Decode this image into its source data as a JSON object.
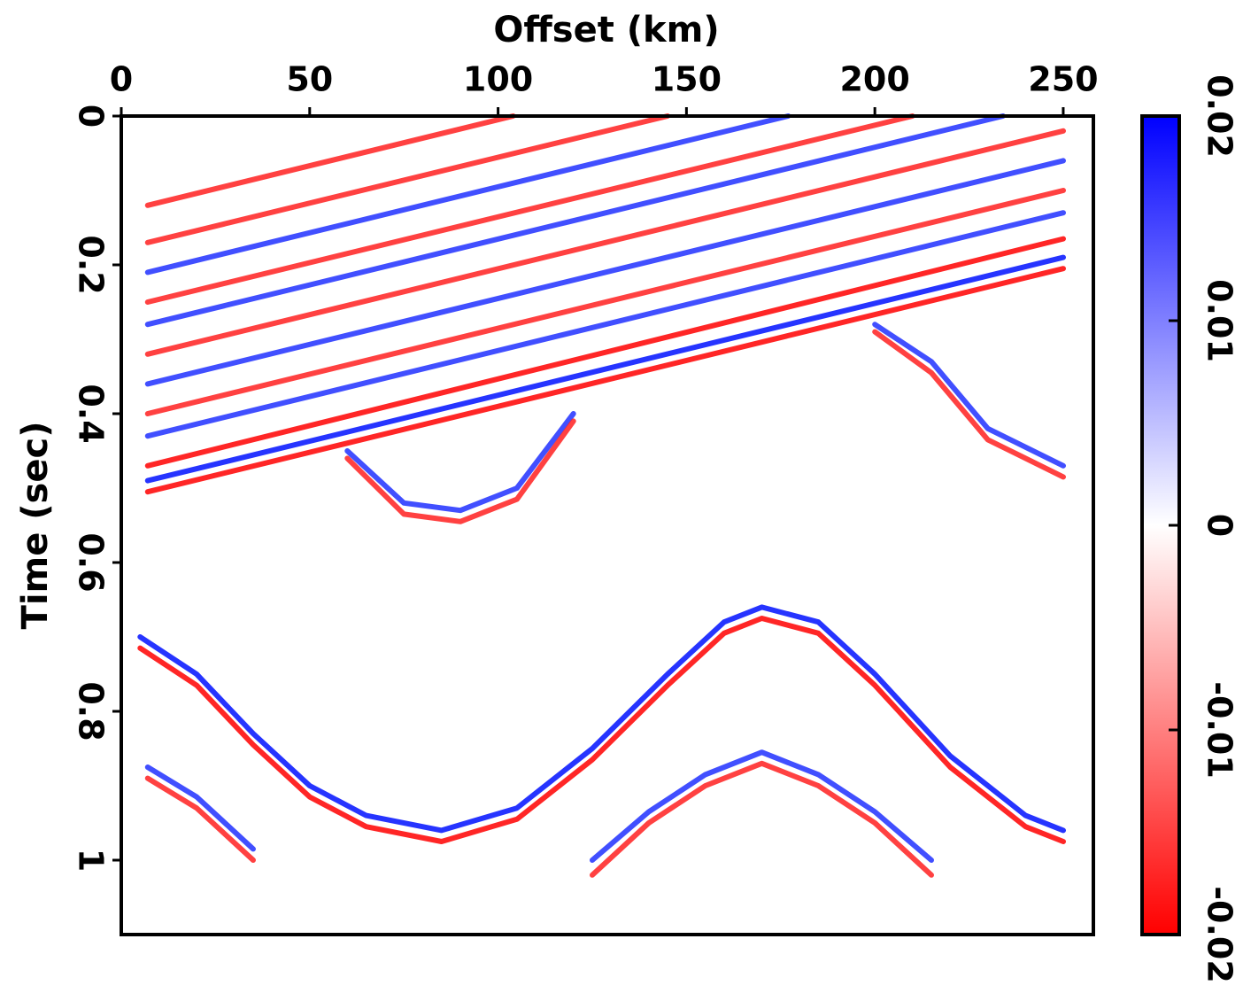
{
  "chart_data": {
    "type": "image",
    "xlabel": "Offset (km)",
    "ylabel": "Time (sec)",
    "xlim": [
      0,
      258
    ],
    "ylim": [
      0,
      1.1
    ],
    "xticks": [
      0,
      50,
      100,
      150,
      200,
      250
    ],
    "yticks": [
      0,
      0.2,
      0.4,
      0.6,
      0.8,
      1
    ],
    "y_inverted": true,
    "colormap": [
      "#0000ff",
      "#ffffff",
      "#ff0000"
    ],
    "clim": [
      0.02,
      -0.02
    ],
    "cticks": [
      0.02,
      0.01,
      0,
      -0.01,
      -0.02
    ],
    "series": [
      {
        "color": "#ff2020",
        "x": [
          7,
          104
        ],
        "values": [
          0.12,
          0
        ]
      },
      {
        "color": "#ff2020",
        "x": [
          7,
          145
        ],
        "values": [
          0.17,
          0
        ]
      },
      {
        "color": "#2030ff",
        "x": [
          7,
          177
        ],
        "values": [
          0.21,
          0
        ]
      },
      {
        "color": "#ff2020",
        "x": [
          7,
          210
        ],
        "values": [
          0.25,
          0
        ]
      },
      {
        "color": "#2030ff",
        "x": [
          7,
          234
        ],
        "values": [
          0.28,
          0
        ]
      },
      {
        "color": "#ff2020",
        "x": [
          7,
          250
        ],
        "values": [
          0.32,
          0.02
        ]
      },
      {
        "color": "#2030ff",
        "x": [
          7,
          250
        ],
        "values": [
          0.36,
          0.06
        ]
      },
      {
        "color": "#ff2020",
        "x": [
          7,
          250
        ],
        "values": [
          0.4,
          0.1
        ]
      },
      {
        "color": "#2030ff",
        "x": [
          7,
          250
        ],
        "values": [
          0.43,
          0.13
        ]
      },
      {
        "color": "#ff0000",
        "x": [
          7,
          250
        ],
        "values": [
          0.47,
          0.165
        ]
      },
      {
        "color": "#0010ff",
        "x": [
          7,
          250
        ],
        "values": [
          0.49,
          0.19
        ]
      },
      {
        "color": "#ff0000",
        "x": [
          7,
          250
        ],
        "values": [
          0.505,
          0.205
        ]
      },
      {
        "color": "#2030ff",
        "x": [
          60,
          75,
          90,
          105,
          120
        ],
        "values": [
          0.45,
          0.52,
          0.53,
          0.5,
          0.4
        ]
      },
      {
        "color": "#ff2020",
        "x": [
          60,
          75,
          90,
          105,
          120
        ],
        "values": [
          0.46,
          0.535,
          0.545,
          0.515,
          0.41
        ]
      },
      {
        "color": "#0010ff",
        "x": [
          5,
          20,
          35,
          50,
          65,
          85,
          105,
          125,
          145,
          160,
          170,
          185,
          200,
          220,
          240,
          250
        ],
        "values": [
          0.7,
          0.75,
          0.83,
          0.9,
          0.94,
          0.96,
          0.93,
          0.85,
          0.75,
          0.68,
          0.66,
          0.68,
          0.75,
          0.86,
          0.94,
          0.96
        ]
      },
      {
        "color": "#ff0000",
        "x": [
          5,
          20,
          35,
          50,
          65,
          85,
          105,
          125,
          145,
          160,
          170,
          185,
          200,
          220,
          240,
          250
        ],
        "values": [
          0.715,
          0.765,
          0.845,
          0.915,
          0.955,
          0.975,
          0.945,
          0.865,
          0.765,
          0.695,
          0.675,
          0.695,
          0.765,
          0.875,
          0.955,
          0.975
        ]
      },
      {
        "color": "#ff2020",
        "x": [
          125,
          140,
          155,
          170,
          185,
          200,
          215
        ],
        "values": [
          1.02,
          0.95,
          0.9,
          0.87,
          0.9,
          0.95,
          1.02
        ]
      },
      {
        "color": "#2030ff",
        "x": [
          125,
          140,
          155,
          170,
          185,
          200,
          215
        ],
        "values": [
          1.0,
          0.935,
          0.885,
          0.855,
          0.885,
          0.935,
          1.0
        ]
      },
      {
        "color": "#2030ff",
        "x": [
          200,
          215,
          230,
          250
        ],
        "values": [
          0.28,
          0.33,
          0.42,
          0.47
        ]
      },
      {
        "color": "#ff2020",
        "x": [
          200,
          215,
          230,
          250
        ],
        "values": [
          0.29,
          0.345,
          0.435,
          0.485
        ]
      },
      {
        "color": "#ff2020",
        "x": [
          7,
          20,
          35
        ],
        "values": [
          0.89,
          0.93,
          1.0
        ]
      },
      {
        "color": "#2030ff",
        "x": [
          7,
          20,
          35
        ],
        "values": [
          0.875,
          0.915,
          0.985
        ]
      }
    ]
  }
}
